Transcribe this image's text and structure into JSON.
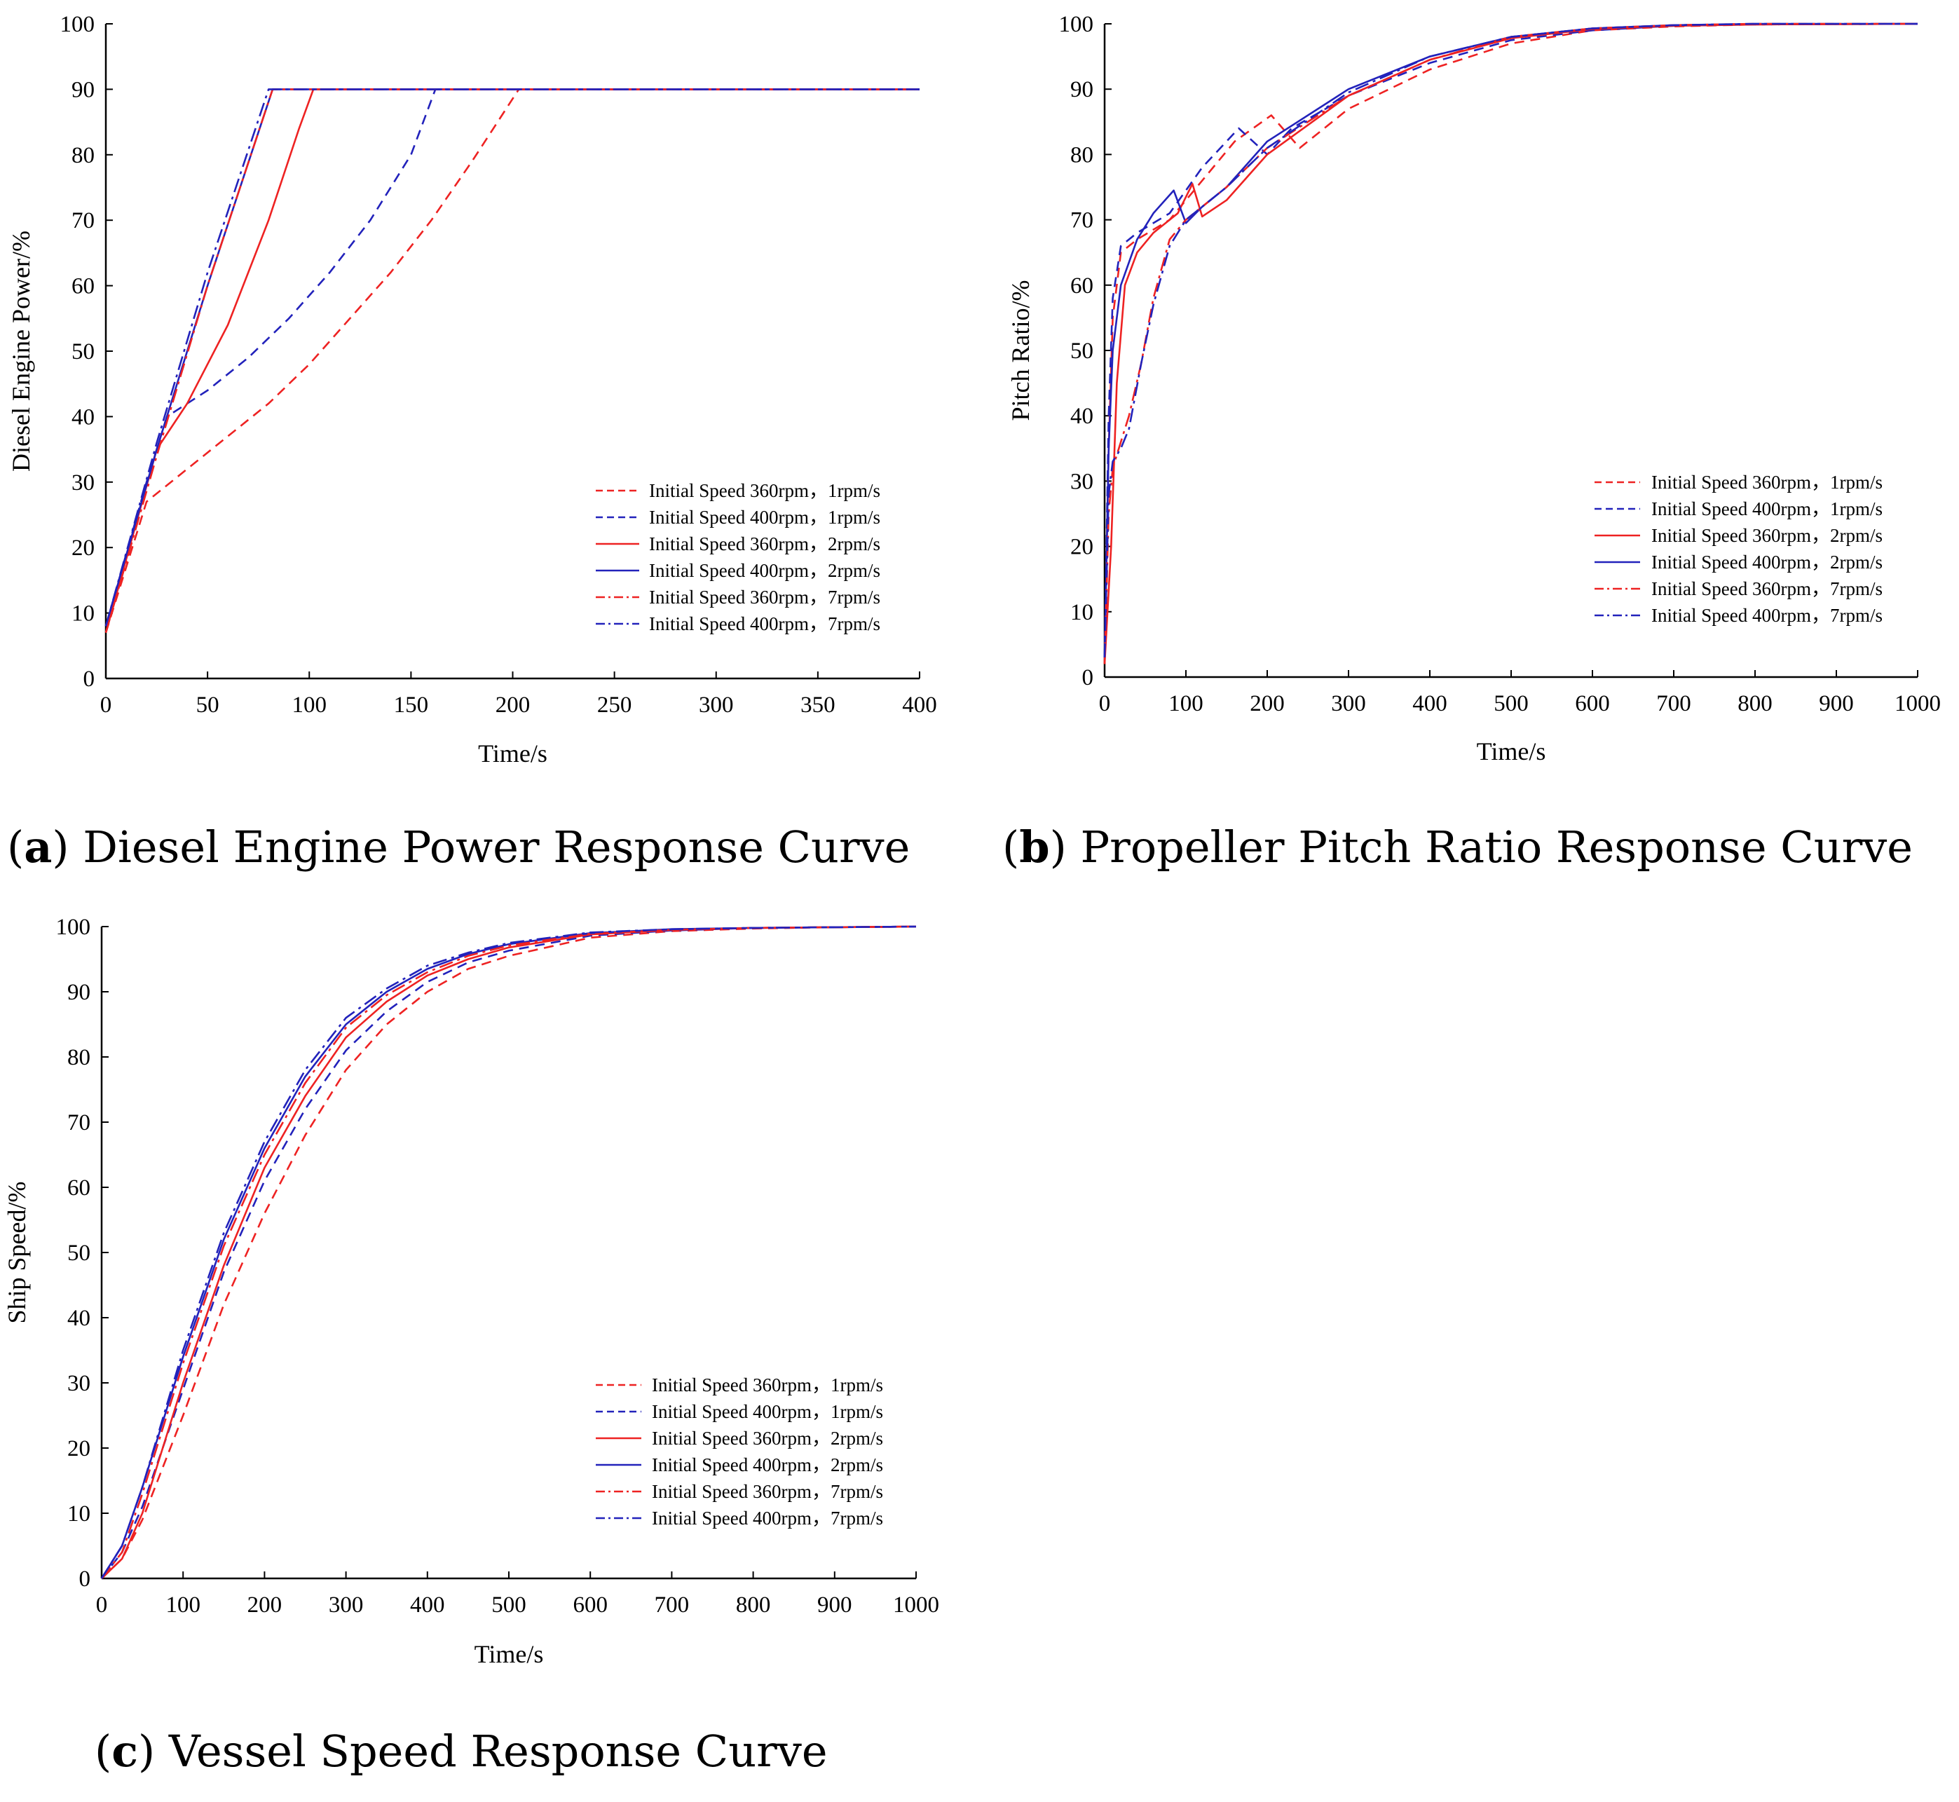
{
  "colors": {
    "red": "#ee2222",
    "blue": "#2222bb",
    "axis": "#000000"
  },
  "legend_labels": [
    "Initial Speed 360rpm，1rpm/s",
    "Initial Speed 400rpm，1rpm/s",
    "Initial Speed 360rpm，2rpm/s",
    "Initial Speed 400rpm，2rpm/s",
    "Initial Speed 360rpm，7rpm/s",
    "Initial Speed 400rpm，7rpm/s"
  ],
  "chart_data": [
    {
      "id": "a",
      "type": "line",
      "caption_letter": "a",
      "caption_text": "Diesel Engine Power Response Curve",
      "title": "",
      "xlabel": "Time/s",
      "ylabel": "Diesel Engine Power/%",
      "xlim": [
        0,
        400
      ],
      "ylim": [
        0,
        100
      ],
      "xticks": [
        0,
        50,
        100,
        150,
        200,
        250,
        300,
        350,
        400
      ],
      "yticks": [
        0,
        10,
        20,
        30,
        40,
        50,
        60,
        70,
        80,
        90,
        100
      ],
      "legend_position": "lower-right",
      "series": [
        {
          "name": "Initial Speed 360rpm，1rpm/s",
          "color": "red",
          "style": "dashed",
          "x": [
            0,
            20,
            40,
            60,
            80,
            100,
            120,
            140,
            160,
            180,
            203,
            400
          ],
          "y": [
            7,
            27,
            32,
            37,
            42,
            48,
            55,
            62,
            70,
            79,
            90,
            90
          ]
        },
        {
          "name": "Initial Speed 400rpm，1rpm/s",
          "color": "blue",
          "style": "dashed",
          "x": [
            0,
            20,
            30,
            50,
            70,
            90,
            110,
            130,
            150,
            162,
            400
          ],
          "y": [
            8,
            30,
            40,
            44,
            49,
            55,
            62,
            70,
            80,
            90,
            90
          ]
        },
        {
          "name": "Initial Speed 360rpm，2rpm/s",
          "color": "red",
          "style": "solid",
          "x": [
            0,
            25,
            40,
            60,
            80,
            95,
            102,
            400
          ],
          "y": [
            7,
            35,
            42,
            54,
            70,
            84,
            90,
            90
          ]
        },
        {
          "name": "Initial Speed 400rpm，2rpm/s",
          "color": "blue",
          "style": "solid",
          "x": [
            0,
            25,
            50,
            82,
            400
          ],
          "y": [
            8,
            35,
            60,
            90,
            90
          ]
        },
        {
          "name": "Initial Speed 360rpm，7rpm/s",
          "color": "red",
          "style": "dashdot",
          "x": [
            0,
            25,
            50,
            82,
            400
          ],
          "y": [
            7,
            34,
            60,
            90,
            90
          ]
        },
        {
          "name": "Initial Speed 400rpm，7rpm/s",
          "color": "blue",
          "style": "dashdot",
          "x": [
            0,
            25,
            50,
            80,
            400
          ],
          "y": [
            8,
            36,
            62,
            90,
            90
          ]
        }
      ]
    },
    {
      "id": "b",
      "type": "line",
      "caption_letter": "b",
      "caption_text": "Propeller Pitch Ratio Response Curve",
      "title": "",
      "xlabel": "Time/s",
      "ylabel": "Pitch Ratio/%",
      "xlim": [
        0,
        1000
      ],
      "ylim": [
        0,
        100
      ],
      "xticks": [
        0,
        100,
        200,
        300,
        400,
        500,
        600,
        700,
        800,
        900,
        1000
      ],
      "yticks": [
        0,
        10,
        20,
        30,
        40,
        50,
        60,
        70,
        80,
        90,
        100
      ],
      "legend_position": "lower-right",
      "series": [
        {
          "name": "Initial Speed 360rpm，1rpm/s",
          "color": "red",
          "style": "dashed",
          "x": [
            0,
            5,
            10,
            20,
            40,
            80,
            120,
            160,
            205,
            240,
            300,
            400,
            500,
            600,
            700,
            800,
            1000
          ],
          "y": [
            2,
            35,
            55,
            65,
            67,
            70,
            76,
            82,
            86,
            81,
            87,
            93,
            97,
            99,
            99.6,
            99.9,
            100
          ]
        },
        {
          "name": "Initial Speed 400rpm，1rpm/s",
          "color": "blue",
          "style": "dashed",
          "x": [
            0,
            5,
            10,
            20,
            40,
            80,
            120,
            165,
            200,
            230,
            300,
            400,
            500,
            600,
            700,
            800,
            1000
          ],
          "y": [
            3,
            40,
            58,
            66,
            68,
            71,
            78,
            84,
            80,
            84,
            89,
            94,
            97.5,
            99,
            99.7,
            99.9,
            100
          ]
        },
        {
          "name": "Initial Speed 360rpm，2rpm/s",
          "color": "red",
          "style": "solid",
          "x": [
            0,
            8,
            15,
            25,
            40,
            60,
            90,
            108,
            120,
            150,
            200,
            300,
            400,
            500,
            600,
            700,
            800,
            1000
          ],
          "y": [
            2,
            20,
            45,
            60,
            65,
            68,
            71,
            75.5,
            70.5,
            73,
            80,
            89,
            94.5,
            97.8,
            99.2,
            99.7,
            99.9,
            100
          ]
        },
        {
          "name": "Initial Speed 400rpm，2rpm/s",
          "color": "blue",
          "style": "solid",
          "x": [
            0,
            5,
            10,
            20,
            40,
            60,
            85,
            100,
            120,
            150,
            200,
            300,
            400,
            500,
            600,
            700,
            800,
            1000
          ],
          "y": [
            3,
            35,
            50,
            60,
            67,
            71,
            74.5,
            69.5,
            72,
            75,
            82,
            90,
            95,
            98,
            99.3,
            99.8,
            100,
            100
          ]
        },
        {
          "name": "Initial Speed 360rpm，7rpm/s",
          "color": "red",
          "style": "dashdot",
          "x": [
            0,
            5,
            10,
            20,
            30,
            45,
            60,
            80,
            100,
            150,
            200,
            300,
            400,
            500,
            600,
            700,
            800,
            1000
          ],
          "y": [
            2,
            25,
            32,
            36,
            40,
            48,
            58,
            67,
            70,
            75,
            81,
            89,
            94.5,
            98,
            99.3,
            99.8,
            100,
            100
          ]
        },
        {
          "name": "Initial Speed 400rpm，7rpm/s",
          "color": "blue",
          "style": "dashdot",
          "x": [
            0,
            5,
            10,
            20,
            30,
            45,
            60,
            80,
            100,
            150,
            200,
            300,
            400,
            500,
            600,
            700,
            800,
            1000
          ],
          "y": [
            3,
            28,
            33,
            35,
            38,
            48,
            57,
            66,
            70,
            75,
            81,
            89.5,
            95,
            98,
            99.3,
            99.8,
            100,
            100
          ]
        }
      ]
    },
    {
      "id": "c",
      "type": "line",
      "caption_letter": "c",
      "caption_text": "Vessel Speed Response Curve",
      "title": "",
      "xlabel": "Time/s",
      "ylabel": "Ship Speed/%",
      "xlim": [
        0,
        1000
      ],
      "ylim": [
        0,
        100
      ],
      "xticks": [
        0,
        100,
        200,
        300,
        400,
        500,
        600,
        700,
        800,
        900,
        1000
      ],
      "yticks": [
        0,
        10,
        20,
        30,
        40,
        50,
        60,
        70,
        80,
        90,
        100
      ],
      "legend_position": "lower-right",
      "series": [
        {
          "name": "Initial Speed 360rpm，1rpm/s",
          "color": "red",
          "style": "dashed",
          "x": [
            0,
            25,
            50,
            100,
            150,
            200,
            250,
            300,
            350,
            400,
            450,
            500,
            600,
            700,
            800,
            900,
            1000
          ],
          "y": [
            0,
            3,
            9,
            25,
            42,
            56,
            68,
            78,
            85,
            90,
            93.5,
            95.5,
            98.3,
            99.3,
            99.7,
            99.9,
            100
          ]
        },
        {
          "name": "Initial Speed 400rpm，1rpm/s",
          "color": "blue",
          "style": "dashed",
          "x": [
            0,
            25,
            50,
            100,
            150,
            200,
            250,
            300,
            350,
            400,
            450,
            500,
            600,
            700,
            800,
            900,
            1000
          ],
          "y": [
            0,
            4,
            11,
            29,
            47,
            61,
            72,
            81,
            87,
            91.5,
            94.5,
            96.3,
            98.6,
            99.4,
            99.8,
            99.9,
            100
          ]
        },
        {
          "name": "Initial Speed 360rpm，2rpm/s",
          "color": "red",
          "style": "solid",
          "x": [
            0,
            25,
            50,
            100,
            150,
            200,
            250,
            300,
            350,
            400,
            450,
            500,
            600,
            700,
            800,
            900,
            1000
          ],
          "y": [
            0,
            3,
            10,
            30,
            48,
            63,
            74,
            83,
            88.5,
            92.5,
            95,
            96.8,
            98.8,
            99.5,
            99.8,
            99.9,
            100
          ]
        },
        {
          "name": "Initial Speed 400rpm，2rpm/s",
          "color": "blue",
          "style": "solid",
          "x": [
            0,
            25,
            50,
            100,
            150,
            200,
            250,
            300,
            350,
            400,
            450,
            500,
            600,
            700,
            800,
            900,
            1000
          ],
          "y": [
            0,
            5,
            14,
            34,
            52,
            66,
            77,
            85,
            90,
            93.5,
            95.8,
            97.3,
            99,
            99.6,
            99.8,
            99.9,
            100
          ]
        },
        {
          "name": "Initial Speed 360rpm，7rpm/s",
          "color": "red",
          "style": "dashdot",
          "x": [
            0,
            25,
            50,
            100,
            150,
            200,
            250,
            300,
            350,
            400,
            450,
            500,
            600,
            700,
            800,
            900,
            1000
          ],
          "y": [
            0,
            4,
            13,
            33,
            51,
            65,
            76,
            84.5,
            89.5,
            93,
            95.5,
            97.1,
            98.9,
            99.5,
            99.8,
            99.9,
            100
          ]
        },
        {
          "name": "Initial Speed 400rpm，7rpm/s",
          "color": "blue",
          "style": "dashdot",
          "x": [
            0,
            25,
            50,
            100,
            150,
            200,
            250,
            300,
            350,
            400,
            450,
            500,
            600,
            700,
            800,
            900,
            1000
          ],
          "y": [
            0,
            5,
            14,
            35,
            53,
            67,
            78,
            86,
            90.5,
            94,
            96,
            97.5,
            99.1,
            99.6,
            99.8,
            99.9,
            100
          ]
        }
      ]
    }
  ]
}
